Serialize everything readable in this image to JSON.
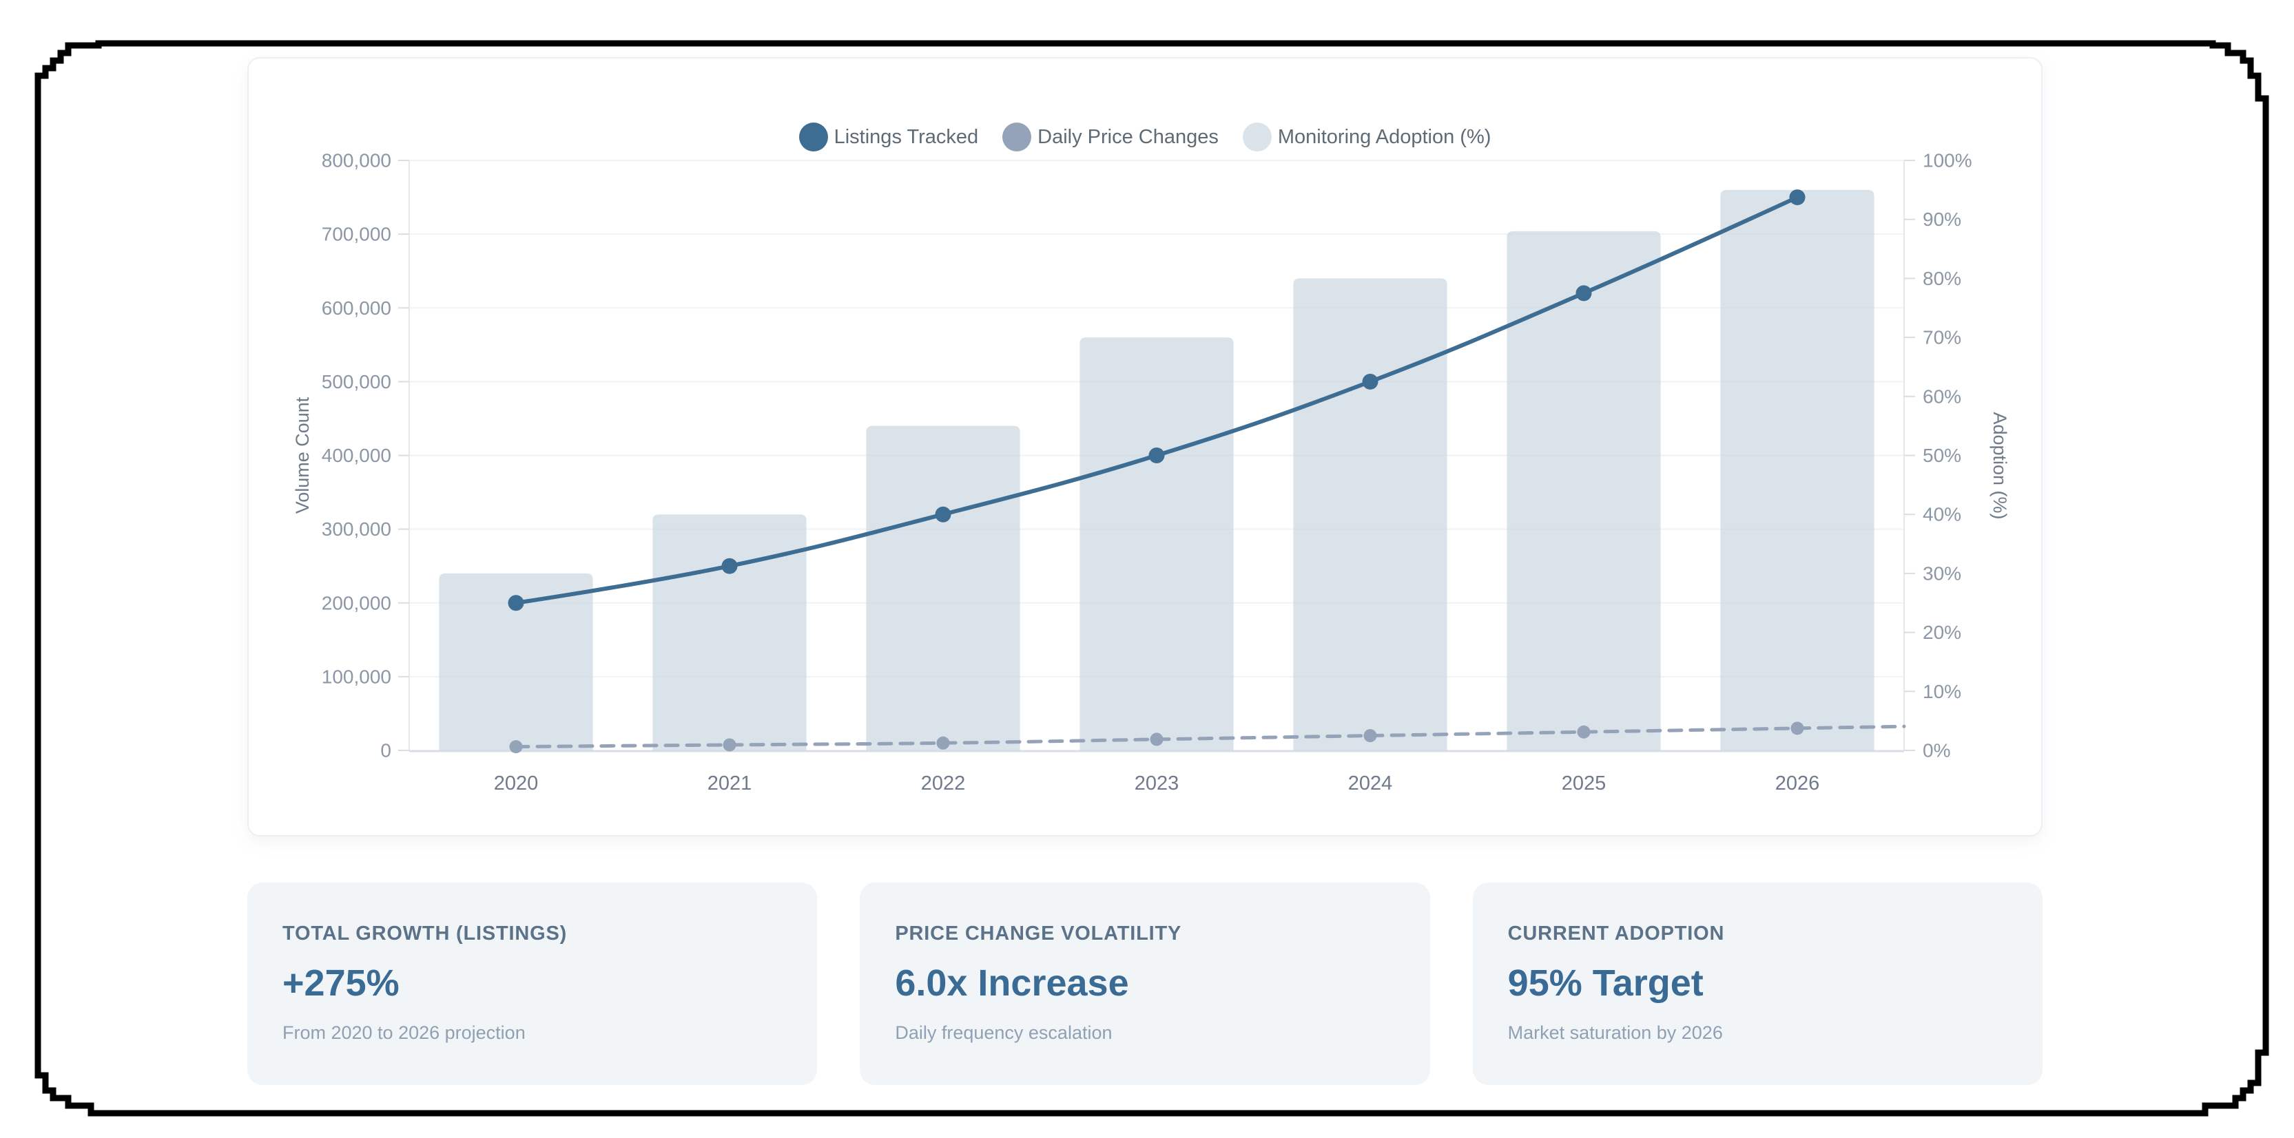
{
  "frame": {
    "color": "#000000"
  },
  "chart_data": {
    "type": "bar",
    "title": "",
    "categories": [
      "2020",
      "2021",
      "2022",
      "2023",
      "2024",
      "2025",
      "2026"
    ],
    "series": [
      {
        "name": "Listings Tracked",
        "type": "line",
        "axis": "left",
        "style": "solid",
        "color": "#3e6d94",
        "values": [
          200000,
          250000,
          320000,
          400000,
          500000,
          620000,
          750000
        ]
      },
      {
        "name": "Daily Price Changes",
        "type": "line",
        "axis": "left",
        "style": "dashed",
        "color": "#94a3b8",
        "extends_to_right_edge": true,
        "values": [
          5000,
          7500,
          10000,
          15000,
          20000,
          25000,
          30000
        ]
      },
      {
        "name": "Monitoring Adoption (%)",
        "type": "bar",
        "axis": "right",
        "style": "fill",
        "color": "#cbd5e1",
        "opacity": 0.7,
        "values": [
          30,
          40,
          55,
          70,
          80,
          88,
          95
        ]
      }
    ],
    "left_axis": {
      "label": "Volume Count",
      "min": 0,
      "max": 800000,
      "step": 100000,
      "format": "thousands"
    },
    "right_axis": {
      "label": "Adoption (%)",
      "min": 0,
      "max": 100,
      "step": 10,
      "suffix": "%"
    },
    "grid": "horizontal",
    "legend_position": "top",
    "tick_color_y": "#8c97a6",
    "tick_color_x": "#6f7b8c",
    "axis_title_color": "#6e7a8a",
    "grid_color": "#f0f2f5",
    "axis_line_color": "#e5e9ee",
    "baseline_color": "#d9dee4"
  },
  "stats": {
    "cards": [
      {
        "title": "TOTAL GROWTH (LISTINGS)",
        "value": "+275%",
        "subtitle": "From 2020 to 2026 projection"
      },
      {
        "title": "PRICE CHANGE VOLATILITY",
        "value": "6.0x Increase",
        "subtitle": "Daily frequency escalation"
      },
      {
        "title": "CURRENT ADOPTION",
        "value": "95% Target",
        "subtitle": "Market saturation by 2026"
      }
    ]
  }
}
